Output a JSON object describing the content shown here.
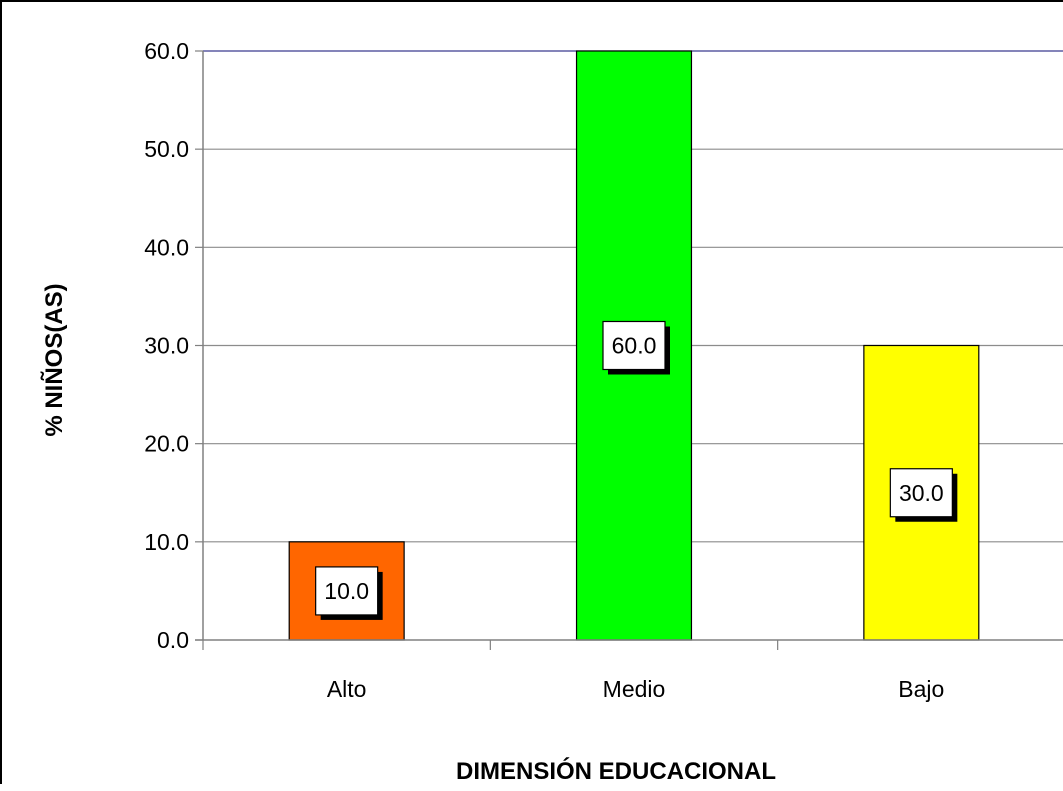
{
  "chart_data": {
    "type": "bar",
    "categories": [
      "Alto",
      "Medio",
      "Bajo"
    ],
    "values": [
      10.0,
      60.0,
      30.0
    ],
    "data_labels": [
      "10.0",
      "60.0",
      "30.0"
    ],
    "colors": [
      "#ff6600",
      "#00ff00",
      "#ffff00"
    ],
    "title": "",
    "xlabel": "DIMENSIÓN EDUCACIONAL",
    "ylabel": "% NIÑOS(AS)",
    "ylim": [
      0,
      60
    ],
    "yticks": [
      "0.0",
      "10.0",
      "20.0",
      "30.0",
      "40.0",
      "50.0",
      "60.0"
    ],
    "grid": true,
    "legend": "none"
  }
}
